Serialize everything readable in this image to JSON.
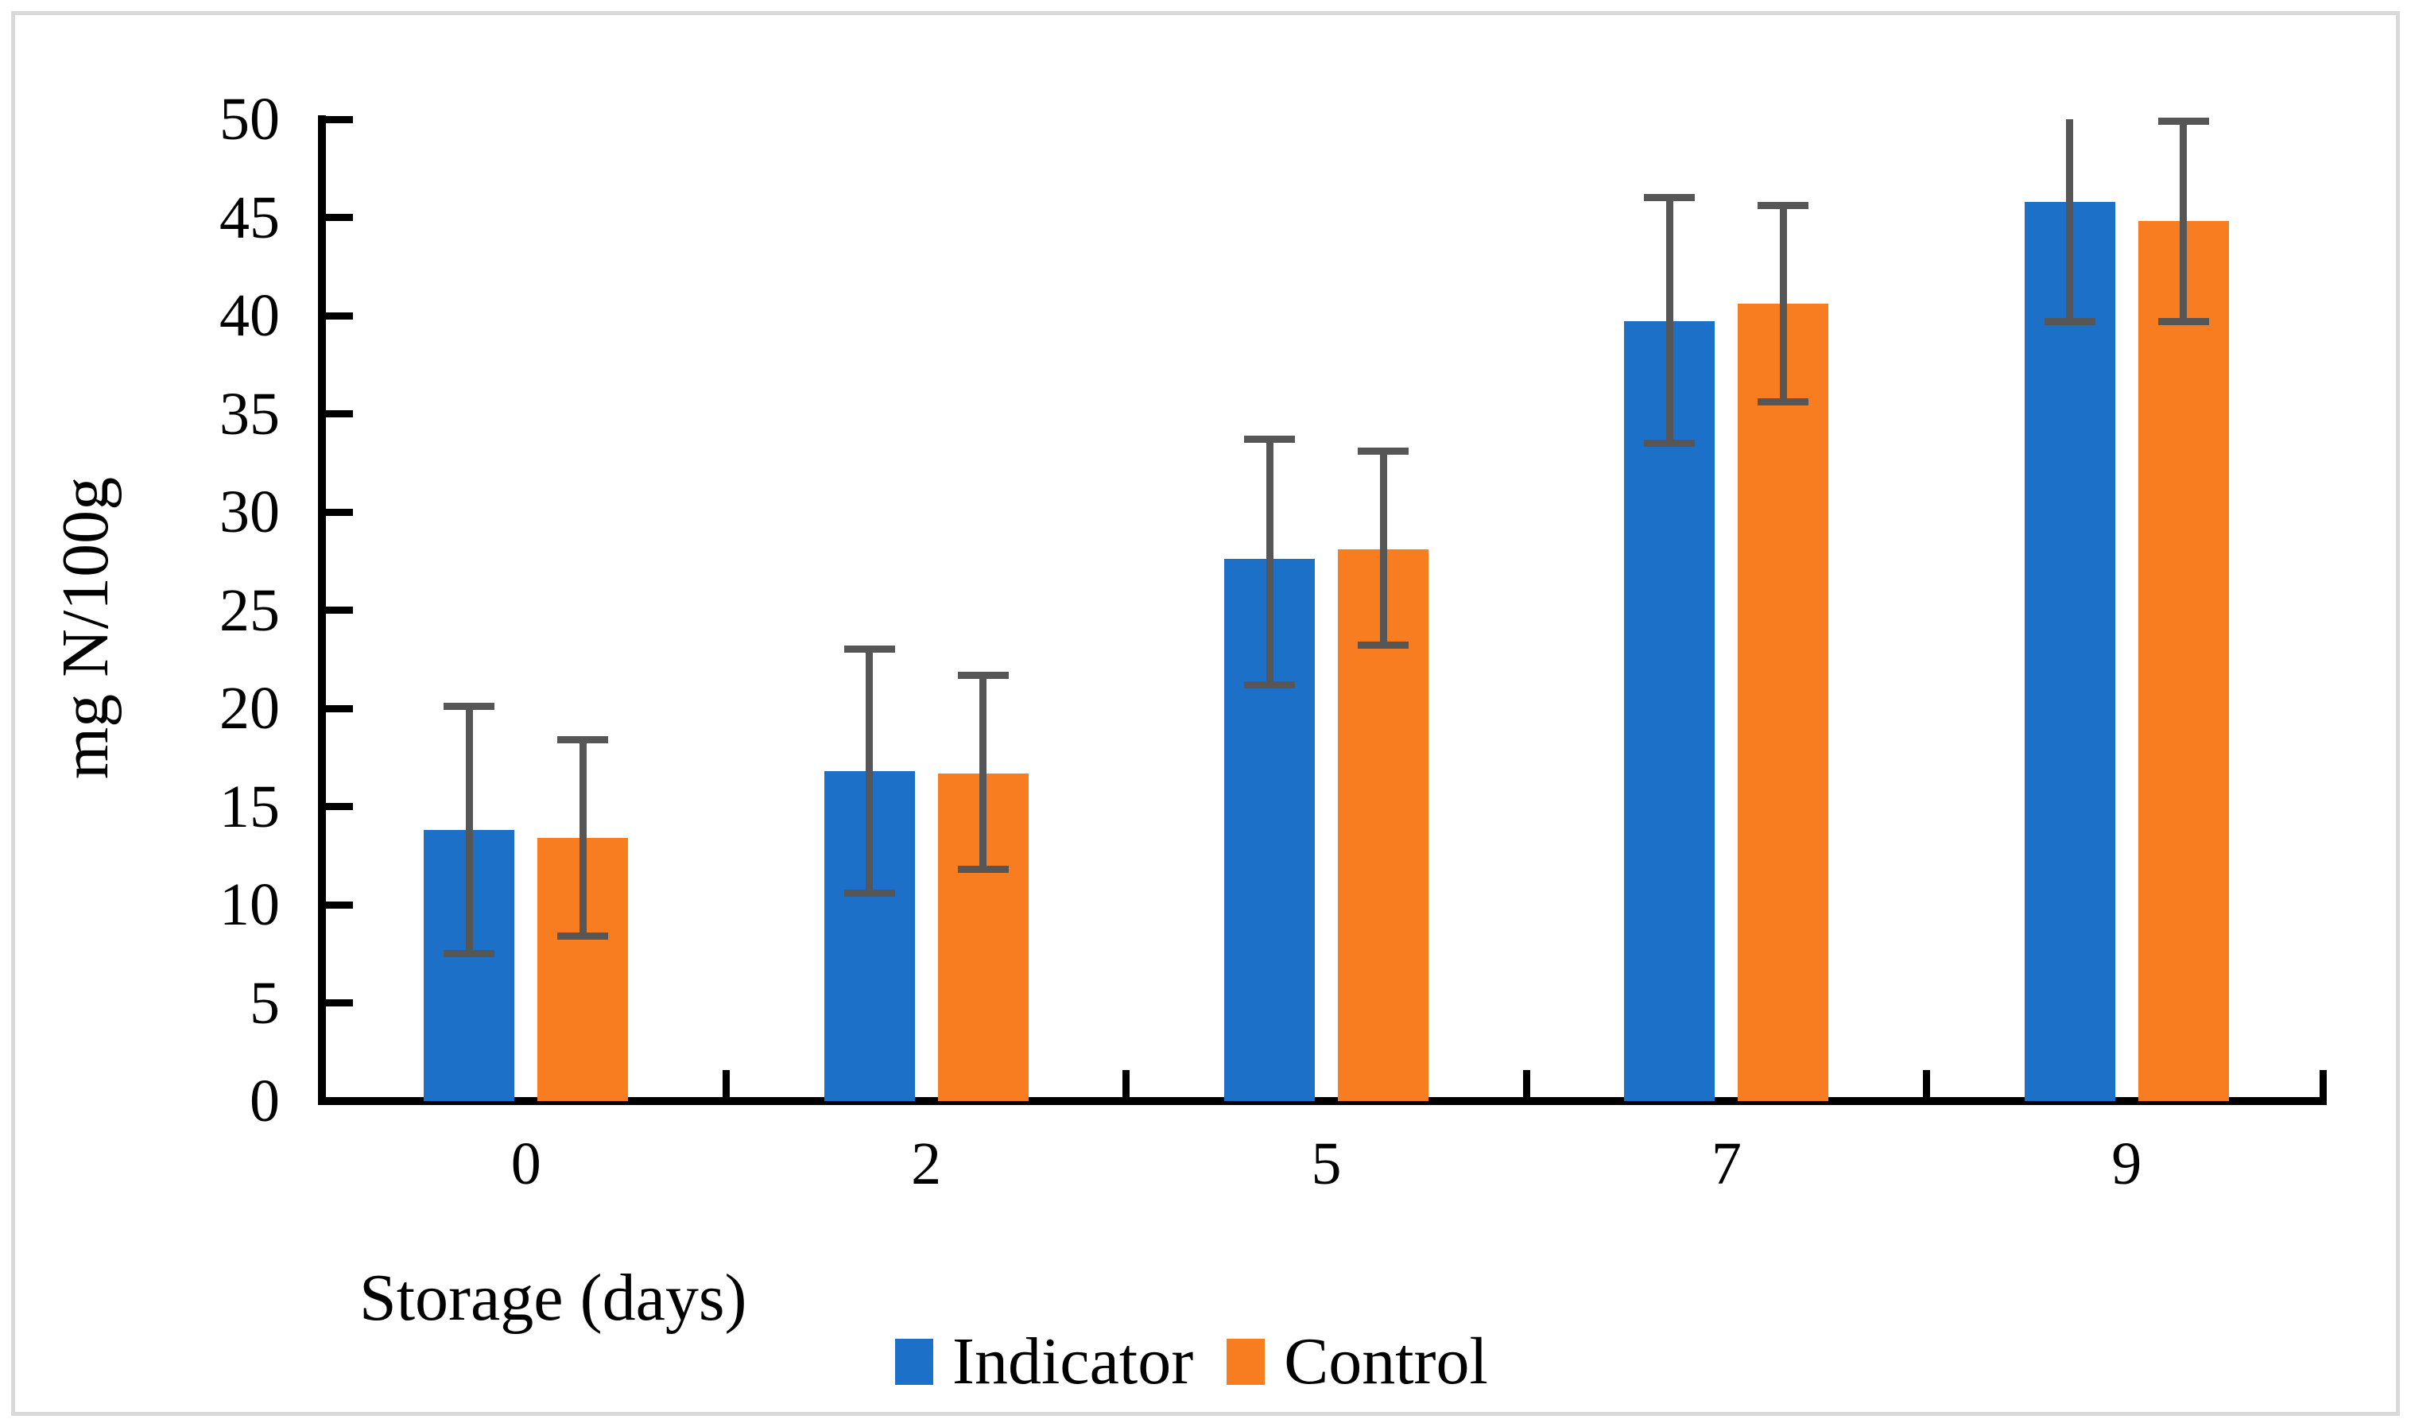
{
  "figure": {
    "border_color": "#d9d9d9",
    "background_color": "#ffffff",
    "axis_color": "#000000",
    "text_color": "#000000"
  },
  "chart_data": {
    "type": "bar",
    "title": "",
    "xlabel": "Storage (days)",
    "ylabel": "mg N/100g",
    "categories": [
      "0",
      "2",
      "5",
      "7",
      "9"
    ],
    "ylim": [
      0,
      50
    ],
    "ytick_step": 5,
    "ytick_labels": [
      "0",
      "5",
      "10",
      "15",
      "20",
      "25",
      "30",
      "35",
      "40",
      "45",
      "50"
    ],
    "grid": false,
    "legend_position": "bottom",
    "error_bar_color": "#565656",
    "series": [
      {
        "name": "Indicator",
        "color": "#1d70c8",
        "values": [
          13.8,
          16.8,
          27.6,
          39.7,
          45.8
        ],
        "error_top": [
          20.1,
          23.0,
          33.7,
          46.0,
          50.0
        ],
        "error_bottom": [
          7.5,
          10.6,
          21.2,
          33.5,
          39.7
        ],
        "error_top_cap": [
          true,
          true,
          true,
          true,
          false
        ]
      },
      {
        "name": "Control",
        "color": "#f87d20",
        "values": [
          13.4,
          16.7,
          28.1,
          40.6,
          44.8
        ],
        "error_top": [
          18.4,
          21.7,
          33.1,
          45.6,
          49.9
        ],
        "error_bottom": [
          8.4,
          11.8,
          23.2,
          35.6,
          39.7
        ],
        "error_top_cap": [
          true,
          true,
          true,
          true,
          true
        ]
      }
    ]
  }
}
